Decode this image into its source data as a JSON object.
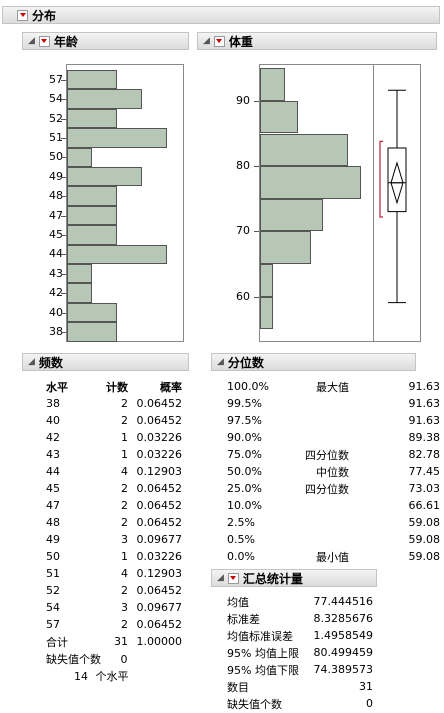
{
  "main": {
    "title": "分布"
  },
  "age": {
    "title": "年龄",
    "ticks": [
      "57",
      "54",
      "52",
      "51",
      "50",
      "49",
      "48",
      "47",
      "45",
      "44",
      "43",
      "42",
      "40",
      "38"
    ],
    "counts": [
      2,
      3,
      2,
      4,
      1,
      3,
      2,
      2,
      2,
      4,
      1,
      1,
      2,
      2
    ]
  },
  "weight": {
    "title": "体重",
    "ticks": [
      "90",
      "80",
      "70",
      "60"
    ],
    "hist": [
      {
        "lo": 55,
        "hi": 60,
        "count": 1
      },
      {
        "lo": 60,
        "hi": 65,
        "count": 1
      },
      {
        "lo": 65,
        "hi": 70,
        "count": 4
      },
      {
        "lo": 70,
        "hi": 75,
        "count": 5
      },
      {
        "lo": 75,
        "hi": 80,
        "count": 8
      },
      {
        "lo": 80,
        "hi": 85,
        "count": 7
      },
      {
        "lo": 85,
        "hi": 90,
        "count": 3
      },
      {
        "lo": 90,
        "hi": 95,
        "count": 2
      }
    ],
    "box": {
      "min": 59.08,
      "q1": 73.03,
      "median": 77.45,
      "q3": 82.78,
      "max": 91.63,
      "mean": 77.444516,
      "ci_low": 74.389573,
      "ci_high": 80.499459
    }
  },
  "freq": {
    "title": "频数",
    "headers": {
      "level": "水平",
      "count": "计数",
      "prob": "概率"
    },
    "rows": [
      {
        "level": "38",
        "count": "2",
        "prob": "0.06452"
      },
      {
        "level": "40",
        "count": "2",
        "prob": "0.06452"
      },
      {
        "level": "42",
        "count": "1",
        "prob": "0.03226"
      },
      {
        "level": "43",
        "count": "1",
        "prob": "0.03226"
      },
      {
        "level": "44",
        "count": "4",
        "prob": "0.12903"
      },
      {
        "level": "45",
        "count": "2",
        "prob": "0.06452"
      },
      {
        "level": "47",
        "count": "2",
        "prob": "0.06452"
      },
      {
        "level": "48",
        "count": "2",
        "prob": "0.06452"
      },
      {
        "level": "49",
        "count": "3",
        "prob": "0.09677"
      },
      {
        "level": "50",
        "count": "1",
        "prob": "0.03226"
      },
      {
        "level": "51",
        "count": "4",
        "prob": "0.12903"
      },
      {
        "level": "52",
        "count": "2",
        "prob": "0.06452"
      },
      {
        "level": "54",
        "count": "3",
        "prob": "0.09677"
      },
      {
        "level": "57",
        "count": "2",
        "prob": "0.06452"
      }
    ],
    "total": {
      "label": "合计",
      "count": "31",
      "prob": "1.00000"
    },
    "missing_label": "缺失值个数",
    "missing_value": "0",
    "levels_count": "14",
    "levels_label": "个水平"
  },
  "quantiles": {
    "title": "分位数",
    "rows": [
      {
        "pct": "100.0%",
        "name": "最大值",
        "value": "91.63"
      },
      {
        "pct": "99.5%",
        "name": "",
        "value": "91.63"
      },
      {
        "pct": "97.5%",
        "name": "",
        "value": "91.63"
      },
      {
        "pct": "90.0%",
        "name": "",
        "value": "89.38"
      },
      {
        "pct": "75.0%",
        "name": "四分位数",
        "value": "82.78"
      },
      {
        "pct": "50.0%",
        "name": "中位数",
        "value": "77.45"
      },
      {
        "pct": "25.0%",
        "name": "四分位数",
        "value": "73.03"
      },
      {
        "pct": "10.0%",
        "name": "",
        "value": "66.61"
      },
      {
        "pct": "2.5%",
        "name": "",
        "value": "59.08"
      },
      {
        "pct": "0.5%",
        "name": "",
        "value": "59.08"
      },
      {
        "pct": "0.0%",
        "name": "最小值",
        "value": "59.08"
      }
    ]
  },
  "summary": {
    "title": "汇总统计量",
    "rows": [
      {
        "label": "均值",
        "value": "77.444516"
      },
      {
        "label": "标准差",
        "value": "8.3285676"
      },
      {
        "label": "均值标准误差",
        "value": "1.4958549"
      },
      {
        "label": "95% 均值上限",
        "value": "80.499459"
      },
      {
        "label": "95% 均值下限",
        "value": "74.389573"
      },
      {
        "label": "数目",
        "value": "31"
      },
      {
        "label": "缺失值个数",
        "value": "0"
      }
    ]
  }
}
